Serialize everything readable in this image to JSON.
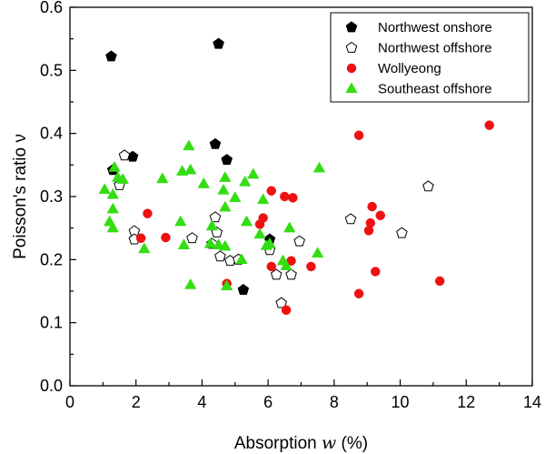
{
  "chart_data": {
    "type": "scatter",
    "xlabel": "Absorption",
    "xlabel_var": "w",
    "xlabel_unit": "(%)",
    "ylabel": "Poisson's ratio ν",
    "xlim": [
      0,
      14
    ],
    "ylim": [
      0.0,
      0.6
    ],
    "xticks": [
      "0",
      "2",
      "4",
      "6",
      "8",
      "10",
      "12",
      "14"
    ],
    "yticks": [
      "0.0",
      "0.1",
      "0.2",
      "0.3",
      "0.4",
      "0.5",
      "0.6"
    ],
    "legend_position": "top-right",
    "series": [
      {
        "name": "Northwest onshore",
        "marker": "pentagon",
        "fill": "#000000",
        "stroke": "#000000",
        "points": [
          [
            1.25,
            0.522
          ],
          [
            4.5,
            0.542
          ],
          [
            1.3,
            0.342
          ],
          [
            1.9,
            0.363
          ],
          [
            4.4,
            0.383
          ],
          [
            4.75,
            0.358
          ],
          [
            6.05,
            0.232
          ],
          [
            5.25,
            0.152
          ]
        ]
      },
      {
        "name": "Northwest offshore",
        "marker": "pentagon",
        "fill": "#ffffff",
        "stroke": "#000000",
        "points": [
          [
            1.65,
            0.365
          ],
          [
            1.5,
            0.318
          ],
          [
            1.95,
            0.245
          ],
          [
            1.95,
            0.232
          ],
          [
            3.7,
            0.234
          ],
          [
            4.3,
            0.225
          ],
          [
            4.4,
            0.267
          ],
          [
            4.45,
            0.243
          ],
          [
            4.55,
            0.205
          ],
          [
            4.85,
            0.198
          ],
          [
            5.1,
            0.2
          ],
          [
            6.05,
            0.215
          ],
          [
            6.25,
            0.176
          ],
          [
            6.4,
            0.131
          ],
          [
            6.7,
            0.176
          ],
          [
            6.95,
            0.229
          ],
          [
            8.5,
            0.264
          ],
          [
            10.05,
            0.242
          ],
          [
            10.85,
            0.316
          ]
        ]
      },
      {
        "name": "Wollyeong",
        "marker": "circle",
        "fill": "#ee1111",
        "stroke": "#ee1111",
        "points": [
          [
            2.15,
            0.234
          ],
          [
            2.35,
            0.273
          ],
          [
            2.9,
            0.235
          ],
          [
            4.75,
            0.162
          ],
          [
            5.75,
            0.256
          ],
          [
            5.85,
            0.266
          ],
          [
            6.1,
            0.309
          ],
          [
            6.1,
            0.189
          ],
          [
            6.5,
            0.3
          ],
          [
            6.55,
            0.12
          ],
          [
            6.7,
            0.198
          ],
          [
            6.75,
            0.298
          ],
          [
            7.3,
            0.189
          ],
          [
            8.75,
            0.397
          ],
          [
            8.75,
            0.146
          ],
          [
            9.05,
            0.246
          ],
          [
            9.1,
            0.258
          ],
          [
            9.15,
            0.284
          ],
          [
            9.25,
            0.181
          ],
          [
            9.4,
            0.27
          ],
          [
            11.2,
            0.166
          ],
          [
            12.7,
            0.413
          ]
        ]
      },
      {
        "name": "Southeast offshore",
        "marker": "triangle",
        "fill": "#33dd11",
        "stroke": "#33dd11",
        "points": [
          [
            1.05,
            0.311
          ],
          [
            1.2,
            0.26
          ],
          [
            1.3,
            0.25
          ],
          [
            1.3,
            0.28
          ],
          [
            1.3,
            0.303
          ],
          [
            1.35,
            0.346
          ],
          [
            1.45,
            0.33
          ],
          [
            1.6,
            0.327
          ],
          [
            2.25,
            0.217
          ],
          [
            2.8,
            0.328
          ],
          [
            3.35,
            0.26
          ],
          [
            3.4,
            0.34
          ],
          [
            3.45,
            0.223
          ],
          [
            3.6,
            0.38
          ],
          [
            3.65,
            0.342
          ],
          [
            3.65,
            0.16
          ],
          [
            4.05,
            0.32
          ],
          [
            4.25,
            0.225
          ],
          [
            4.3,
            0.253
          ],
          [
            4.5,
            0.223
          ],
          [
            4.65,
            0.31
          ],
          [
            4.7,
            0.33
          ],
          [
            4.7,
            0.283
          ],
          [
            4.7,
            0.221
          ],
          [
            4.75,
            0.158
          ],
          [
            5.0,
            0.298
          ],
          [
            5.2,
            0.2
          ],
          [
            5.3,
            0.323
          ],
          [
            5.35,
            0.26
          ],
          [
            5.55,
            0.335
          ],
          [
            5.75,
            0.24
          ],
          [
            5.85,
            0.295
          ],
          [
            5.95,
            0.222
          ],
          [
            6.05,
            0.225
          ],
          [
            6.45,
            0.198
          ],
          [
            6.55,
            0.19
          ],
          [
            6.65,
            0.25
          ],
          [
            7.5,
            0.21
          ],
          [
            7.55,
            0.345
          ]
        ]
      }
    ]
  }
}
